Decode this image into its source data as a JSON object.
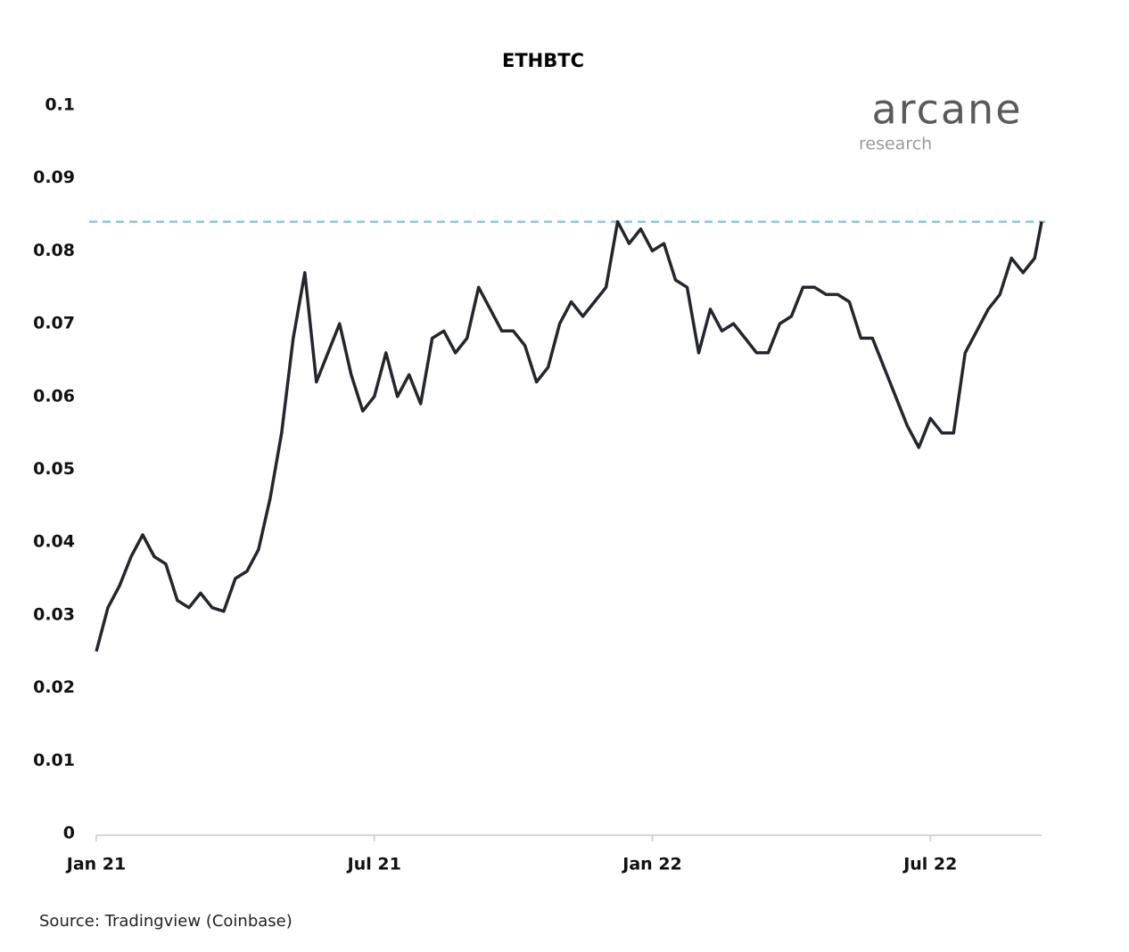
{
  "chart_data": {
    "type": "line",
    "title": "ETHBTC",
    "x": [
      0,
      0.25,
      0.5,
      0.75,
      1,
      1.25,
      1.5,
      1.75,
      2,
      2.25,
      2.5,
      2.75,
      3,
      3.25,
      3.5,
      3.75,
      4,
      4.25,
      4.5,
      4.75,
      5,
      5.25,
      5.5,
      5.75,
      6,
      6.25,
      6.5,
      6.75,
      7,
      7.25,
      7.5,
      7.75,
      8,
      8.25,
      8.5,
      8.75,
      9,
      9.25,
      9.5,
      9.75,
      10,
      10.25,
      10.5,
      10.75,
      11,
      11.25,
      11.5,
      11.75,
      12,
      12.25,
      12.5,
      12.75,
      13,
      13.25,
      13.5,
      13.75,
      14,
      14.25,
      14.5,
      14.75,
      15,
      15.25,
      15.5,
      15.75,
      16,
      16.25,
      16.5,
      16.75,
      17,
      17.25,
      17.5,
      17.75,
      18,
      18.25,
      18.5,
      18.75,
      19,
      19.25,
      19.5,
      19.75,
      20,
      20.25,
      20.4
    ],
    "series": [
      {
        "name": "ETHBTC",
        "color": "#23262c",
        "values": [
          0.025,
          0.031,
          0.034,
          0.038,
          0.041,
          0.038,
          0.037,
          0.032,
          0.031,
          0.033,
          0.031,
          0.0305,
          0.035,
          0.036,
          0.039,
          0.046,
          0.055,
          0.068,
          0.077,
          0.062,
          0.066,
          0.07,
          0.063,
          0.058,
          0.06,
          0.066,
          0.06,
          0.063,
          0.059,
          0.068,
          0.069,
          0.066,
          0.068,
          0.075,
          0.072,
          0.069,
          0.069,
          0.067,
          0.062,
          0.064,
          0.07,
          0.073,
          0.071,
          0.073,
          0.075,
          0.084,
          0.081,
          0.083,
          0.08,
          0.081,
          0.076,
          0.075,
          0.066,
          0.072,
          0.069,
          0.07,
          0.068,
          0.066,
          0.066,
          0.07,
          0.071,
          0.075,
          0.075,
          0.074,
          0.074,
          0.073,
          0.068,
          0.068,
          0.064,
          0.06,
          0.056,
          0.053,
          0.057,
          0.055,
          0.055,
          0.066,
          0.069,
          0.072,
          0.074,
          0.079,
          0.077,
          0.079,
          0.084
        ]
      }
    ],
    "xlim": [
      0,
      20.4
    ],
    "xticks": [
      {
        "value": 0,
        "label": "Jan 21"
      },
      {
        "value": 6,
        "label": "Jul 21"
      },
      {
        "value": 12,
        "label": "Jan 22"
      },
      {
        "value": 18,
        "label": "Jul 22"
      }
    ],
    "ylim": [
      0,
      0.1
    ],
    "yticks": [
      0,
      0.01,
      0.02,
      0.03,
      0.04,
      0.05,
      0.06,
      0.07,
      0.08,
      0.09,
      0.1
    ],
    "grid": false,
    "reference_line": {
      "value": 0.084,
      "color": "#7fcbe6"
    },
    "logo": {
      "name": "arcane",
      "subtitle": "research"
    },
    "source": "Source: Tradingview (Coinbase)"
  }
}
